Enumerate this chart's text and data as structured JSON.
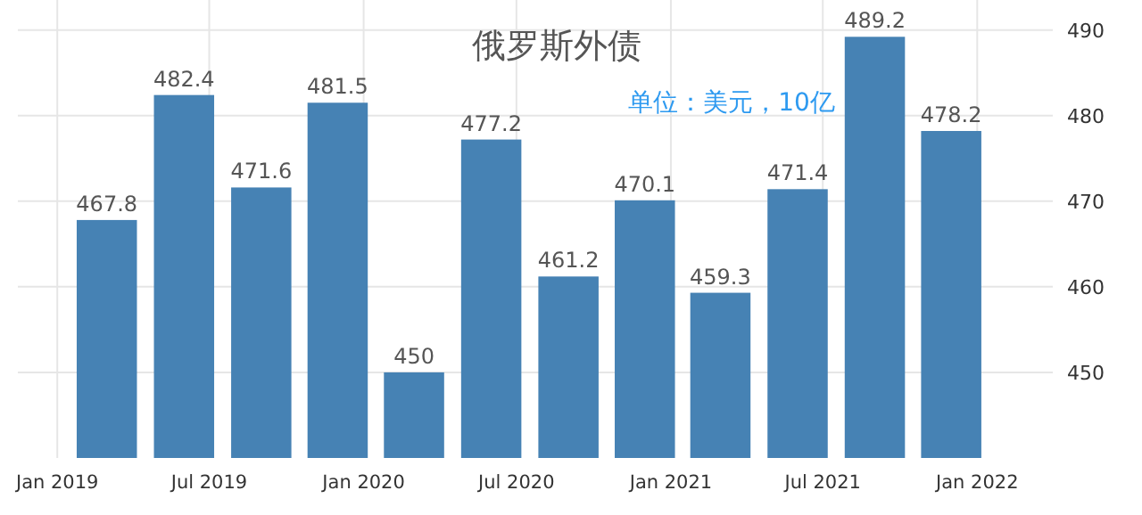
{
  "chart_data": {
    "type": "bar",
    "title": "俄罗斯外债",
    "annotations": [
      "单位：美元，10亿"
    ],
    "x": [
      "2019-03-01",
      "2019-06-01",
      "2019-09-01",
      "2019-12-01",
      "2020-03-01",
      "2020-06-01",
      "2020-09-01",
      "2020-12-01",
      "2021-03-01",
      "2021-06-01",
      "2021-09-01",
      "2021-12-01"
    ],
    "values": [
      467.8,
      482.4,
      471.6,
      481.5,
      450,
      477.2,
      461.2,
      470.1,
      459.3,
      471.4,
      489.2,
      478.2
    ],
    "color": "#4682b4",
    "data_labels": true,
    "ylim": [
      440,
      493.5
    ],
    "yticks": [
      450,
      460,
      470,
      480,
      490
    ],
    "xlim": [
      "2018-11-15",
      "2022-04-01"
    ],
    "xticks": [
      {
        "value": "2019-01",
        "label": "Jan 2019"
      },
      {
        "value": "2019-07",
        "label": "Jul 2019"
      },
      {
        "value": "2020-01",
        "label": "Jan 2020"
      },
      {
        "value": "2020-07",
        "label": "Jul 2020"
      },
      {
        "value": "2021-01",
        "label": "Jan 2021"
      },
      {
        "value": "2021-07",
        "label": "Jul 2021"
      },
      {
        "value": "2022-01",
        "label": "Jan 2022"
      }
    ],
    "grid": true
  }
}
